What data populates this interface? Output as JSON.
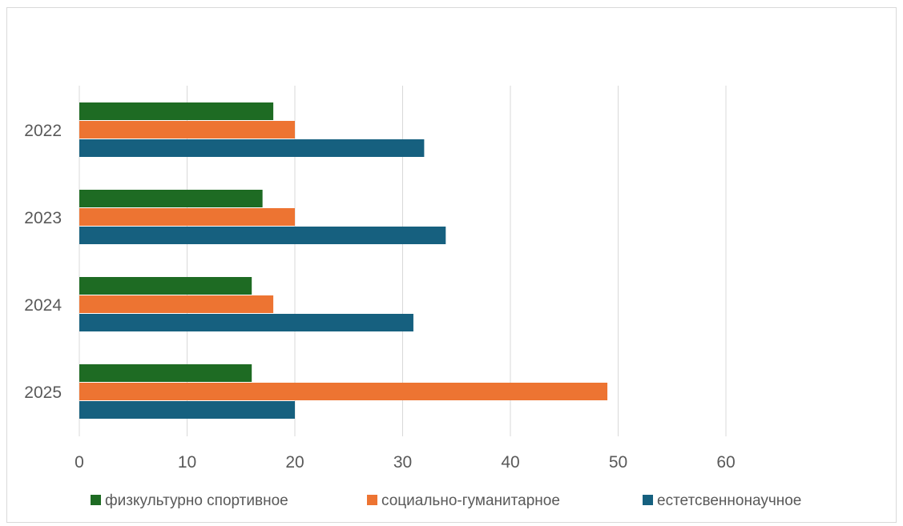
{
  "chart_data": {
    "type": "bar",
    "orientation": "horizontal",
    "categories": [
      "2022",
      "2023",
      "2024",
      "2025"
    ],
    "series": [
      {
        "name": "физкультурно спортивное",
        "values": [
          18,
          17,
          16,
          16
        ],
        "color": "#1e6b23"
      },
      {
        "name": "социально-гуманитарное",
        "values": [
          20,
          20,
          18,
          49
        ],
        "color": "#ed7432"
      },
      {
        "name": "естетсвеннонаучное",
        "values": [
          32,
          34,
          31,
          20
        ],
        "color": "#16607f"
      }
    ],
    "x_ticks": [
      "0",
      "10",
      "20",
      "30",
      "40",
      "50",
      "60"
    ],
    "xlim": [
      0,
      60
    ],
    "grid": "vertical",
    "legend_position": "bottom"
  }
}
